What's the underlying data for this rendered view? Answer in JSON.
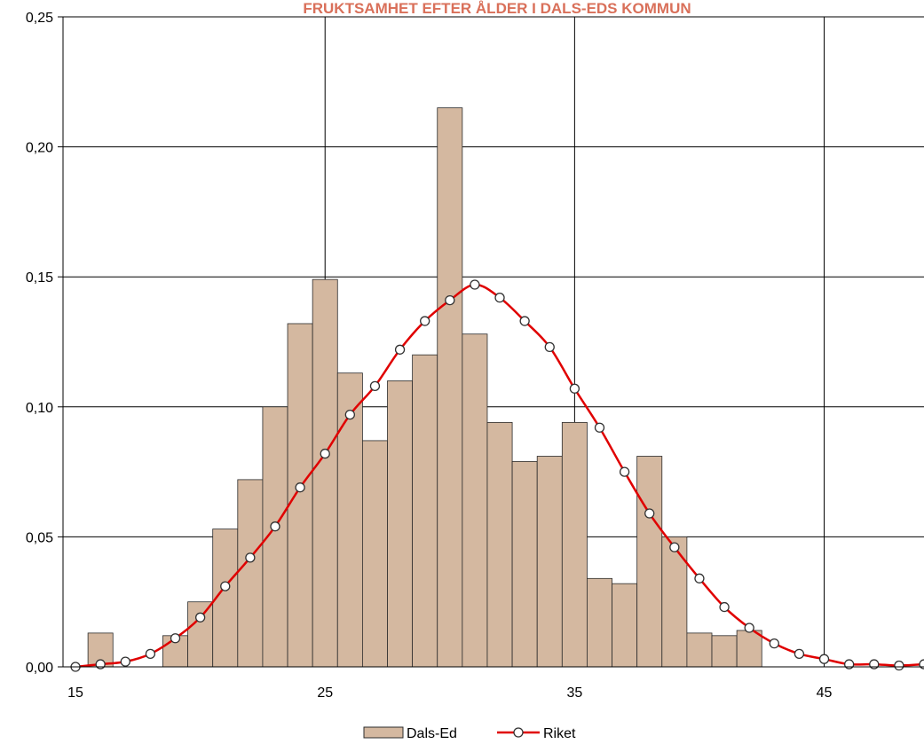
{
  "chart_data": {
    "type": "bar",
    "title": "FRUKTSAMHET EFTER ÅLDER I DALS-EDS KOMMUN",
    "xlabel": "",
    "ylabel": "",
    "xlim": [
      15,
      49
    ],
    "ylim": [
      0,
      0.25
    ],
    "x_ticks": [
      15,
      25,
      35,
      45
    ],
    "x_tick_labels": [
      "15",
      "25",
      "35",
      "45"
    ],
    "y_ticks": [
      0,
      0.05,
      0.1,
      0.15,
      0.2,
      0.25
    ],
    "y_tick_labels": [
      "0,00",
      "0,05",
      "0,10",
      "0,15",
      "0,20",
      "0,25"
    ],
    "grid": true,
    "legend_position": "bottom-center",
    "colors": {
      "bar_fill": "#d4b8a0",
      "bar_stroke": "#2b2b2b",
      "line": "#e00000",
      "title": "#d9705a",
      "grid": "#000000"
    },
    "series": [
      {
        "name": "Dals-Ed",
        "type": "bar",
        "x": [
          15,
          16,
          17,
          18,
          19,
          20,
          21,
          22,
          23,
          24,
          25,
          26,
          27,
          28,
          29,
          30,
          31,
          32,
          33,
          34,
          35,
          36,
          37,
          38,
          39,
          40,
          41,
          42,
          43,
          44,
          45,
          46,
          47,
          48,
          49
        ],
        "values": [
          0,
          0.013,
          0,
          0,
          0.012,
          0.025,
          0.053,
          0.072,
          0.1,
          0.132,
          0.149,
          0.113,
          0.087,
          0.11,
          0.12,
          0.215,
          0.128,
          0.094,
          0.079,
          0.081,
          0.094,
          0.034,
          0.032,
          0.081,
          0.05,
          0.013,
          0.012,
          0.014,
          0,
          0,
          0,
          0,
          0,
          0,
          0
        ]
      },
      {
        "name": "Riket",
        "type": "line",
        "x": [
          15,
          16,
          17,
          18,
          19,
          20,
          21,
          22,
          23,
          24,
          25,
          26,
          27,
          28,
          29,
          30,
          31,
          32,
          33,
          34,
          35,
          36,
          37,
          38,
          39,
          40,
          41,
          42,
          43,
          44,
          45,
          46,
          47,
          48,
          49
        ],
        "values": [
          0,
          0.001,
          0.002,
          0.005,
          0.011,
          0.019,
          0.031,
          0.042,
          0.054,
          0.069,
          0.082,
          0.097,
          0.108,
          0.122,
          0.133,
          0.141,
          0.147,
          0.142,
          0.133,
          0.123,
          0.107,
          0.092,
          0.075,
          0.059,
          0.046,
          0.034,
          0.023,
          0.015,
          0.009,
          0.005,
          0.003,
          0.001,
          0.001,
          0.0005,
          0.001
        ]
      }
    ]
  }
}
